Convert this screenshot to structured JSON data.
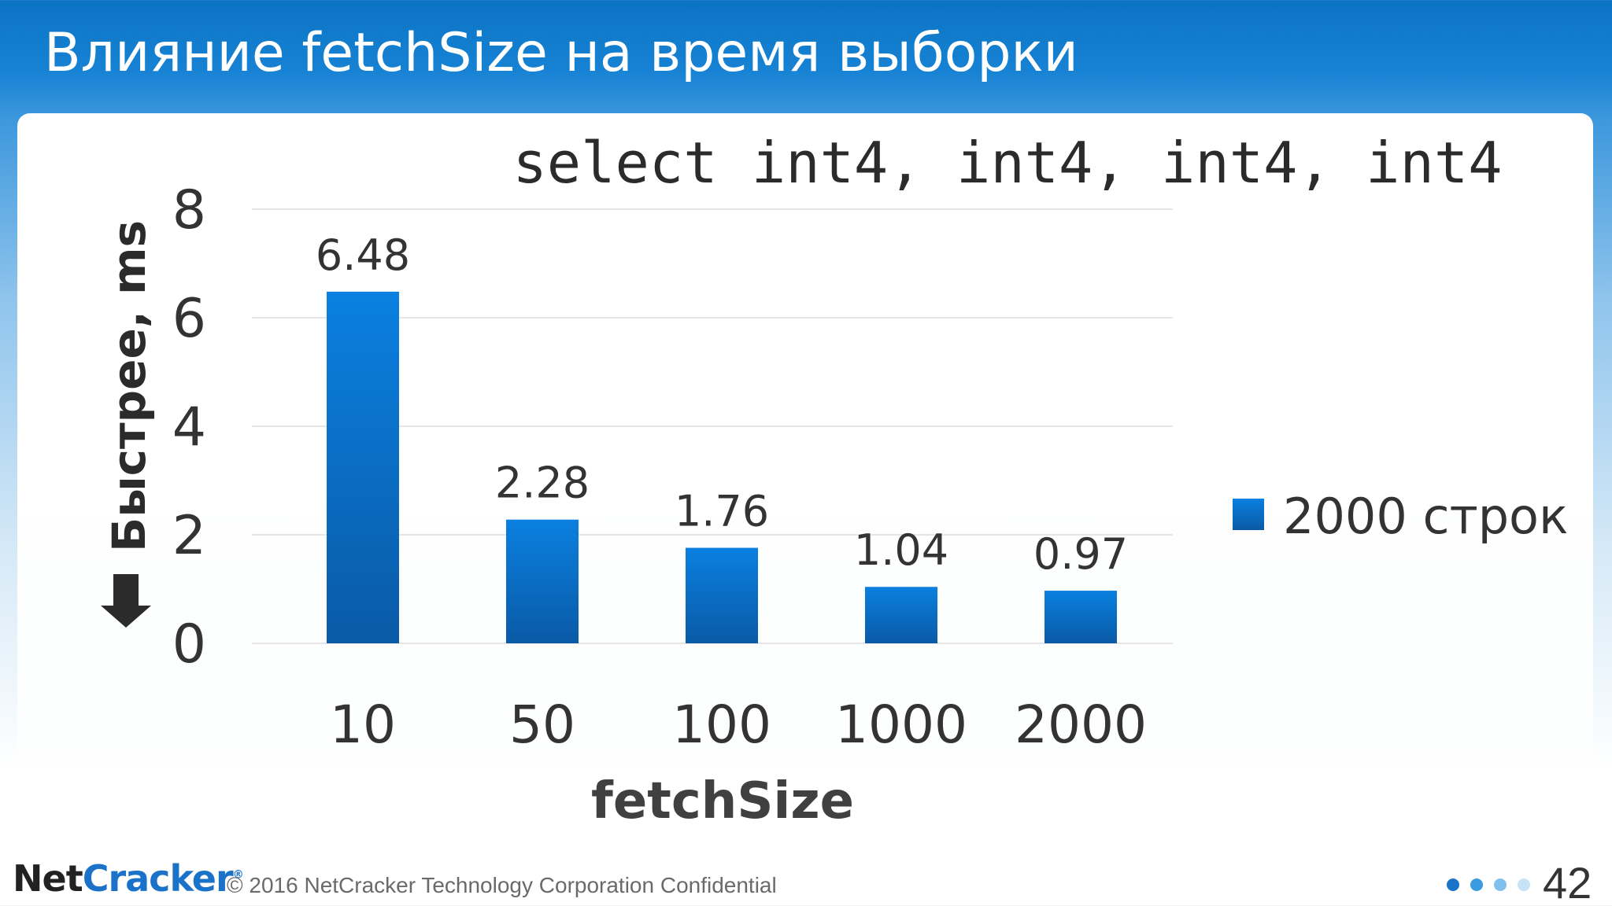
{
  "slide": {
    "title": "Влияние fetchSize на время выборки",
    "page_number": "42"
  },
  "footer": {
    "logo_part1": "Net",
    "logo_part2": "Cracker",
    "logo_mark": "®",
    "copyright": "© 2016 NetCracker Technology Corporation Confidential",
    "progress_dots": [
      "#1a73c8",
      "#3a9be0",
      "#7fc0ee",
      "#c6e2f7"
    ]
  },
  "colors": {
    "bar_top": "#0a80e0",
    "bar_bottom": "#0a5aa6",
    "grid": "#e6e6e6",
    "text": "#333333"
  },
  "chart_data": {
    "type": "bar",
    "title": "select int4, int4, int4, int4",
    "xlabel": "fetchSize",
    "ylabel": "Быстрее, ms",
    "ylabel_arrow": "down-arrow",
    "categories": [
      "10",
      "50",
      "100",
      "1000",
      "2000"
    ],
    "series": [
      {
        "name": "2000 строк",
        "values": [
          6.48,
          2.28,
          1.76,
          1.04,
          0.97
        ],
        "labels": [
          "6.48",
          "2.28",
          "1.76",
          "1.04",
          "0.97"
        ]
      }
    ],
    "ylim": [
      0,
      8
    ],
    "yticks": [
      "0",
      "2",
      "4",
      "6",
      "8"
    ],
    "grid": true,
    "legend_position": "right"
  }
}
